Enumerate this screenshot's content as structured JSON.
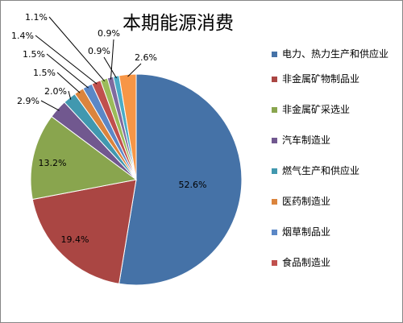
{
  "chart_data": {
    "type": "pie",
    "title": "本期能源消费",
    "legend_position": "right",
    "slices": [
      {
        "name": "电力、热力生产和供应业",
        "value": 52.6,
        "label": "52.6%",
        "color": "#4572A7"
      },
      {
        "name": "非金属矿物制品业",
        "value": 19.4,
        "label": "19.4%",
        "color": "#AA4643"
      },
      {
        "name": "非金属矿采选业",
        "value": 13.2,
        "label": "13.2%",
        "color": "#89A54E"
      },
      {
        "name": "汽车制造业",
        "value": 2.9,
        "label": "2.9%",
        "color": "#71588F"
      },
      {
        "name": "燃气生产和供应业",
        "value": 2.0,
        "label": "2.0%",
        "color": "#4198AF"
      },
      {
        "name": "医药制造业",
        "value": 1.5,
        "label": "1.5%",
        "color": "#DB843D"
      },
      {
        "name": "烟草制品业",
        "value": 1.5,
        "label": "1.5%",
        "color": "#5B87C6"
      },
      {
        "name": "食品制造业",
        "value": 1.4,
        "label": "1.4%",
        "color": "#C0504D"
      },
      {
        "name": "",
        "value": 1.1,
        "label": "1.1%",
        "color": "#9BBB59"
      },
      {
        "name": "",
        "value": 0.9,
        "label": "0.9%",
        "color": "#7F6B9F"
      },
      {
        "name": "",
        "value": 0.9,
        "label": "0.9%",
        "color": "#4BACC6"
      },
      {
        "name": "",
        "value": 2.6,
        "label": "2.6%",
        "color": "#F79646"
      }
    ]
  }
}
